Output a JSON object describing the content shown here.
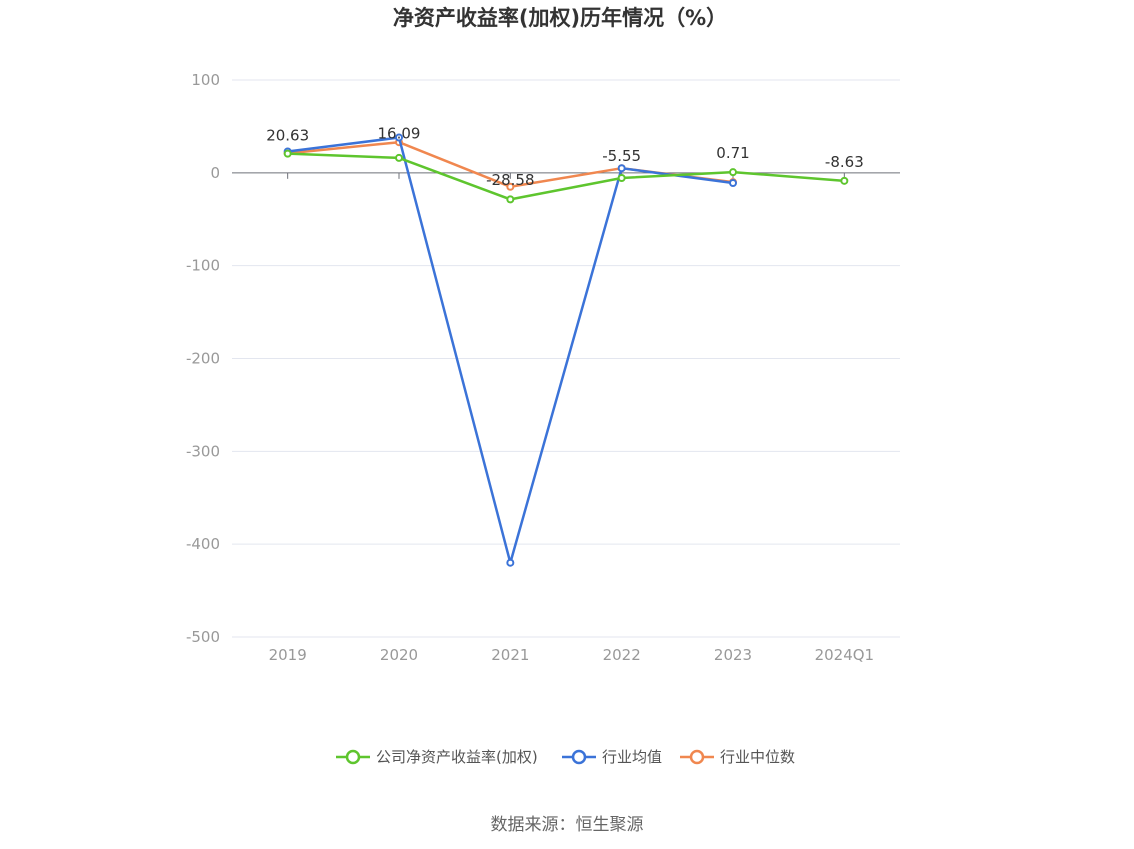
{
  "chart_data": {
    "type": "line",
    "title": "净资产收益率(加权)历年情况（%）",
    "categories": [
      "2019",
      "2020",
      "2021",
      "2022",
      "2023",
      "2024Q1"
    ],
    "ylim": [
      -500,
      100
    ],
    "yticks": [
      100,
      0,
      -100,
      -200,
      -300,
      -400,
      -500
    ],
    "grid": true,
    "legend_position": "bottom",
    "series": [
      {
        "name": "公司净资产收益率(加权)",
        "color": "#5ec52e",
        "values": [
          20.63,
          16.09,
          -28.58,
          -5.55,
          0.71,
          -8.63
        ],
        "labels": [
          "20.63",
          "16.09",
          "-28.58",
          "-5.55",
          "0.71",
          "-8.63"
        ]
      },
      {
        "name": "行业均值",
        "color": "#3b73d8",
        "values": [
          23,
          38,
          -420,
          5,
          -11,
          null
        ]
      },
      {
        "name": "行业中位数",
        "color": "#f0874f",
        "values": [
          21,
          33,
          -15,
          5,
          -10,
          null
        ]
      }
    ]
  },
  "source": "数据来源：恒生聚源"
}
